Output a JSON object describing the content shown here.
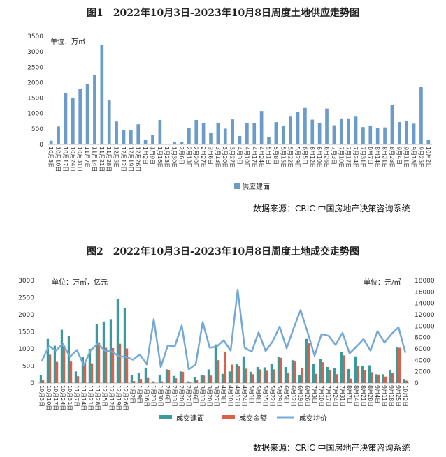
{
  "chart_data": [
    {
      "type": "bar",
      "title": "图1　2022年10月3日-2023年10月8日周度土地供应走势图",
      "unit_label": "单位：万㎡",
      "ylim": [
        0,
        3500
      ],
      "yticks": [
        0,
        500,
        1000,
        1500,
        2000,
        2500,
        3000,
        3500
      ],
      "grid": false,
      "legend_position": "bottom",
      "source": "数据来源：CRIC 中国房地产决策咨询系统",
      "categories": [
        "10月3日",
        "10月10日",
        "10月17日",
        "10月24日",
        "10月31日",
        "11月7日",
        "11月14日",
        "11月21日",
        "11月28日",
        "12月5日",
        "12月12日",
        "12月19日",
        "12月26日",
        "1月2日",
        "1月9日",
        "1月16日",
        "1月23日",
        "1月30日",
        "2月6日",
        "2月13日",
        "2月20日",
        "2月27日",
        "3月6日",
        "3月13日",
        "3月20日",
        "3月27日",
        "4月3日",
        "4月10日",
        "4月17日",
        "4月24日",
        "5月1日",
        "5月8日",
        "5月15日",
        "5月22日",
        "5月29日",
        "6月5日",
        "6月12日",
        "6月19日",
        "6月26日",
        "7月3日",
        "7月10日",
        "7月17日",
        "7月24日",
        "7月31日",
        "8月7日",
        "8月14日",
        "8月21日",
        "8月28日",
        "9月4日",
        "9月11日",
        "9月18日",
        "9月25日",
        "10月2日"
      ],
      "tick_labels": [
        "10月3日",
        "10月10日",
        "10月17日",
        "10月24日",
        "10月31日",
        "11月7日",
        "11月14日",
        "11月21日",
        "11月28日",
        "12月5日",
        "12月12日",
        "12月19日",
        "12月26日",
        "1月2日",
        "1月9日",
        "1月16日",
        "1月23日",
        "1月30日",
        "2月6日",
        "2月13日",
        "2月20日",
        "2月27日",
        "3月6日",
        "3月13日",
        "3月20日",
        "3月27日",
        "4月3日",
        "4月10日",
        "4月17日",
        "4月24日",
        "5月1日",
        "5月8日",
        "5月15日",
        "5月22日",
        "5月29日",
        "6月5日",
        "6月12日",
        "6月19日",
        "6月26日",
        "7月3日",
        "7月10日",
        "7月17日",
        "7月24日",
        "7月31日",
        "8月7日",
        "8月14日",
        "8月21日",
        "8月28日",
        "9月4日",
        "9月11日",
        "9月18日",
        "9月25日",
        "10月2日"
      ],
      "series": [
        {
          "name": "供应建面",
          "color": "#6b9bc8",
          "values": [
            120,
            580,
            1660,
            1510,
            1800,
            1950,
            2250,
            3220,
            1420,
            740,
            470,
            450,
            650,
            140,
            300,
            790,
            20,
            90,
            90,
            530,
            790,
            680,
            380,
            680,
            510,
            810,
            270,
            700,
            700,
            1080,
            240,
            720,
            600,
            920,
            1050,
            1180,
            800,
            680,
            1160,
            620,
            840,
            840,
            920,
            560,
            610,
            530,
            550,
            1280,
            720,
            750,
            670,
            1860,
            150
          ]
        }
      ]
    },
    {
      "type": "bar+line",
      "title": "图2　2022年10月3日-2023年10月8日周度土地成交走势图",
      "unit_label_left": "单位：万㎡，亿元",
      "unit_label_right": "单位：元/㎡",
      "ylim_left": [
        0,
        3000
      ],
      "yticks_left": [
        0,
        500,
        1000,
        1500,
        2000,
        2500,
        3000
      ],
      "ylim_right": [
        0,
        18000
      ],
      "yticks_right": [
        0,
        2000,
        4000,
        6000,
        8000,
        10000,
        12000,
        14000,
        16000,
        18000
      ],
      "grid": false,
      "legend_position": "bottom",
      "source": "数据来源：CRIC 中国房地产决策咨询系统",
      "categories": [
        "10月3日",
        "10月10日",
        "10月17日",
        "10月24日",
        "10月31日",
        "11月7日",
        "11月14日",
        "11月21日",
        "11月28日",
        "12月5日",
        "12月12日",
        "12月19日",
        "12月26日",
        "1月2日",
        "1月9日",
        "1月16日",
        "1月23日",
        "1月30日",
        "2月6日",
        "2月13日",
        "2月20日",
        "2月27日",
        "3月6日",
        "3月13日",
        "3月20日",
        "3月27日",
        "4月3日",
        "4月10日",
        "4月17日",
        "4月24日",
        "5月1日",
        "5月8日",
        "5月15日",
        "5月22日",
        "5月29日",
        "6月5日",
        "6月12日",
        "6月19日",
        "6月26日",
        "7月3日",
        "7月10日",
        "7月17日",
        "7月24日",
        "7月31日",
        "8月7日",
        "8月14日",
        "8月21日",
        "8月28日",
        "9月4日",
        "9月11日",
        "9月18日",
        "9月25日",
        "10月2日"
      ],
      "tick_labels": [
        "10月3日",
        "10月10日",
        "10月17日",
        "10月24日",
        "10月31日",
        "11月7日",
        "11月14日",
        "11月21日",
        "11月28日",
        "12月5日",
        "12月12日",
        "12月19日",
        "12月26日",
        "1月2日",
        "1月9日",
        "1月16日",
        "1月23日",
        "1月30日",
        "2月6日",
        "2月13日",
        "2月20日",
        "2月27日",
        "3月6日",
        "3月13日",
        "3月20日",
        "3月27日",
        "4月3日",
        "4月10日",
        "4月17日",
        "4月24日",
        "5月1日",
        "5月8日",
        "5月15日",
        "5月22日",
        "5月29日",
        "6月5日",
        "6月12日",
        "6月19日",
        "6月26日",
        "7月3日",
        "7月10日",
        "7月17日",
        "7月24日",
        "7月31日",
        "8月7日",
        "8月14日",
        "8月21日",
        "8月28日",
        "9月4日",
        "9月11日",
        "9月18日",
        "9月25日",
        "10月2日"
      ],
      "series": [
        {
          "name": "成交建面",
          "kind": "bar",
          "axis": "left",
          "color": "#3a9c9a",
          "values": [
            230,
            1290,
            1090,
            1560,
            1370,
            340,
            760,
            1000,
            1720,
            1800,
            1870,
            2470,
            2190,
            230,
            300,
            450,
            50,
            230,
            400,
            210,
            340,
            50,
            180,
            240,
            400,
            1130,
            270,
            340,
            550,
            780,
            330,
            470,
            460,
            560,
            760,
            470,
            670,
            240,
            1290,
            560,
            700,
            470,
            430,
            900,
            410,
            780,
            490,
            520,
            260,
            260,
            370,
            1040,
            120
          ]
        },
        {
          "name": "成交金额",
          "kind": "bar",
          "axis": "left",
          "color": "#d9604a",
          "values": [
            90,
            830,
            620,
            1070,
            630,
            200,
            590,
            580,
            1190,
            1030,
            1020,
            1150,
            1010,
            60,
            120,
            150,
            10,
            50,
            370,
            140,
            330,
            20,
            100,
            220,
            220,
            670,
            910,
            540,
            510,
            420,
            260,
            400,
            360,
            400,
            740,
            290,
            630,
            430,
            1160,
            270,
            610,
            390,
            260,
            810,
            130,
            500,
            380,
            320,
            250,
            190,
            300,
            1030,
            70
          ]
        },
        {
          "name": "成交均价",
          "kind": "line",
          "axis": "right",
          "color": "#74a9d6",
          "values": [
            3900,
            6500,
            5700,
            6900,
            4600,
            5800,
            3100,
            5800,
            6900,
            5700,
            5500,
            4700,
            4600,
            4100,
            5000,
            3300,
            11200,
            2800,
            6600,
            6400,
            10100,
            2400,
            3300,
            10700,
            6200,
            6400,
            7500,
            5700,
            16400,
            6200,
            5500,
            8900,
            5600,
            7300,
            9900,
            6100,
            9600,
            12800,
            8900,
            4800,
            8600,
            8300,
            6700,
            8800,
            5200,
            6400,
            7700,
            5700,
            9100,
            7100,
            8600,
            9800,
            5300
          ]
        }
      ]
    }
  ]
}
